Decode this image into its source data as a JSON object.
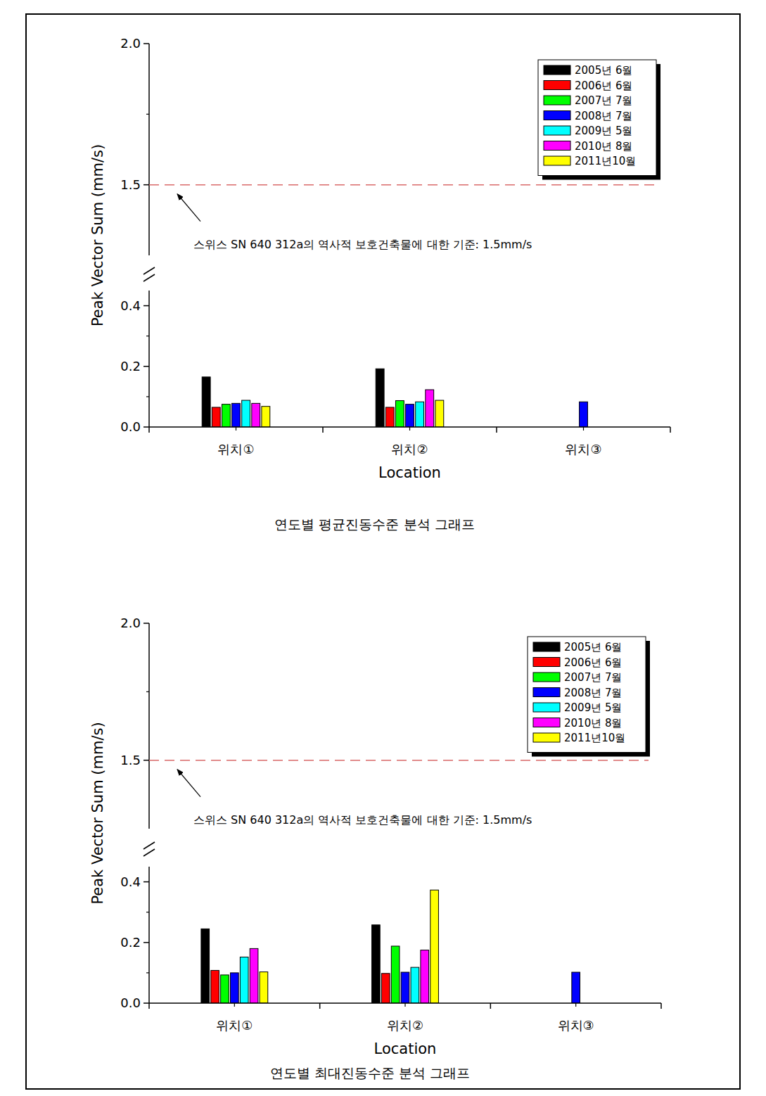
{
  "chart_data": [
    {
      "type": "bar",
      "title": "연도별 평균진동수준 분석 그래프",
      "x_label": "Location",
      "y_label": "Peak Vector Sum (mm/s)",
      "categories": [
        "위치①",
        "위치②",
        "위치③"
      ],
      "series": [
        {
          "name": "2005년 6월",
          "color": "#000000",
          "values": [
            0.165,
            0.192,
            null
          ]
        },
        {
          "name": "2006년 6월",
          "color": "#ff0000",
          "values": [
            0.065,
            0.065,
            null
          ]
        },
        {
          "name": "2007년 7월",
          "color": "#00ff00",
          "values": [
            0.075,
            0.087,
            null
          ]
        },
        {
          "name": "2008년 7월",
          "color": "#0000ff",
          "values": [
            0.078,
            0.075,
            0.083
          ]
        },
        {
          "name": "2009년 5월",
          "color": "#00ffff",
          "values": [
            0.088,
            0.083,
            null
          ]
        },
        {
          "name": "2010년 8월",
          "color": "#ff00ff",
          "values": [
            0.078,
            0.123,
            null
          ]
        },
        {
          "name": "2011년10월",
          "color": "#ffff00",
          "values": [
            0.068,
            0.088,
            null
          ]
        }
      ],
      "ylim": [
        0,
        2.0
      ],
      "ybreak": [
        0.45,
        1.25
      ],
      "yticks": [
        {
          "value": 0,
          "label": "0.0"
        },
        0.2,
        0.4,
        1.5,
        {
          "value": 2.0,
          "label": "2.0"
        }
      ],
      "legend": "upper right",
      "annotations": [
        {
          "text": "스위스 SN 640 312a의 역사적 보호건축물에 대한 기준: 1.5mm/s",
          "value": 1.5
        }
      ]
    },
    {
      "type": "bar",
      "title": "연도별 최대진동수준 분석 그래프",
      "x_label": "Location",
      "y_label": "Peak Vector Sum (mm/s)",
      "categories": [
        "위치①",
        "위치②",
        "위치③"
      ],
      "series": [
        {
          "name": "2005년 6월",
          "color": "#000000",
          "values": [
            0.245,
            0.258,
            null
          ]
        },
        {
          "name": "2006년 6월",
          "color": "#ff0000",
          "values": [
            0.108,
            0.098,
            null
          ]
        },
        {
          "name": "2007년 7월",
          "color": "#00ff00",
          "values": [
            0.093,
            0.188,
            null
          ]
        },
        {
          "name": "2008년 7월",
          "color": "#0000ff",
          "values": [
            0.1,
            0.102,
            0.102
          ]
        },
        {
          "name": "2009년 5월",
          "color": "#00ffff",
          "values": [
            0.152,
            0.118,
            null
          ]
        },
        {
          "name": "2010년 8월",
          "color": "#ff00ff",
          "values": [
            0.18,
            0.175,
            null
          ]
        },
        {
          "name": "2011년10월",
          "color": "#ffff00",
          "values": [
            0.103,
            0.373,
            null
          ]
        }
      ],
      "ylim": [
        0,
        2.0
      ],
      "ybreak": [
        0.45,
        1.25
      ],
      "yticks": [
        {
          "value": 0,
          "label": "0.0"
        },
        0.2,
        0.4,
        1.5,
        {
          "value": 2.0,
          "label": "2.0"
        }
      ],
      "legend": "upper right",
      "annotations": [
        {
          "text": "스위스 SN 640 312a의 역사적 보호건축물에 대한 기준: 1.5mm/s",
          "value": 1.5
        }
      ]
    }
  ]
}
